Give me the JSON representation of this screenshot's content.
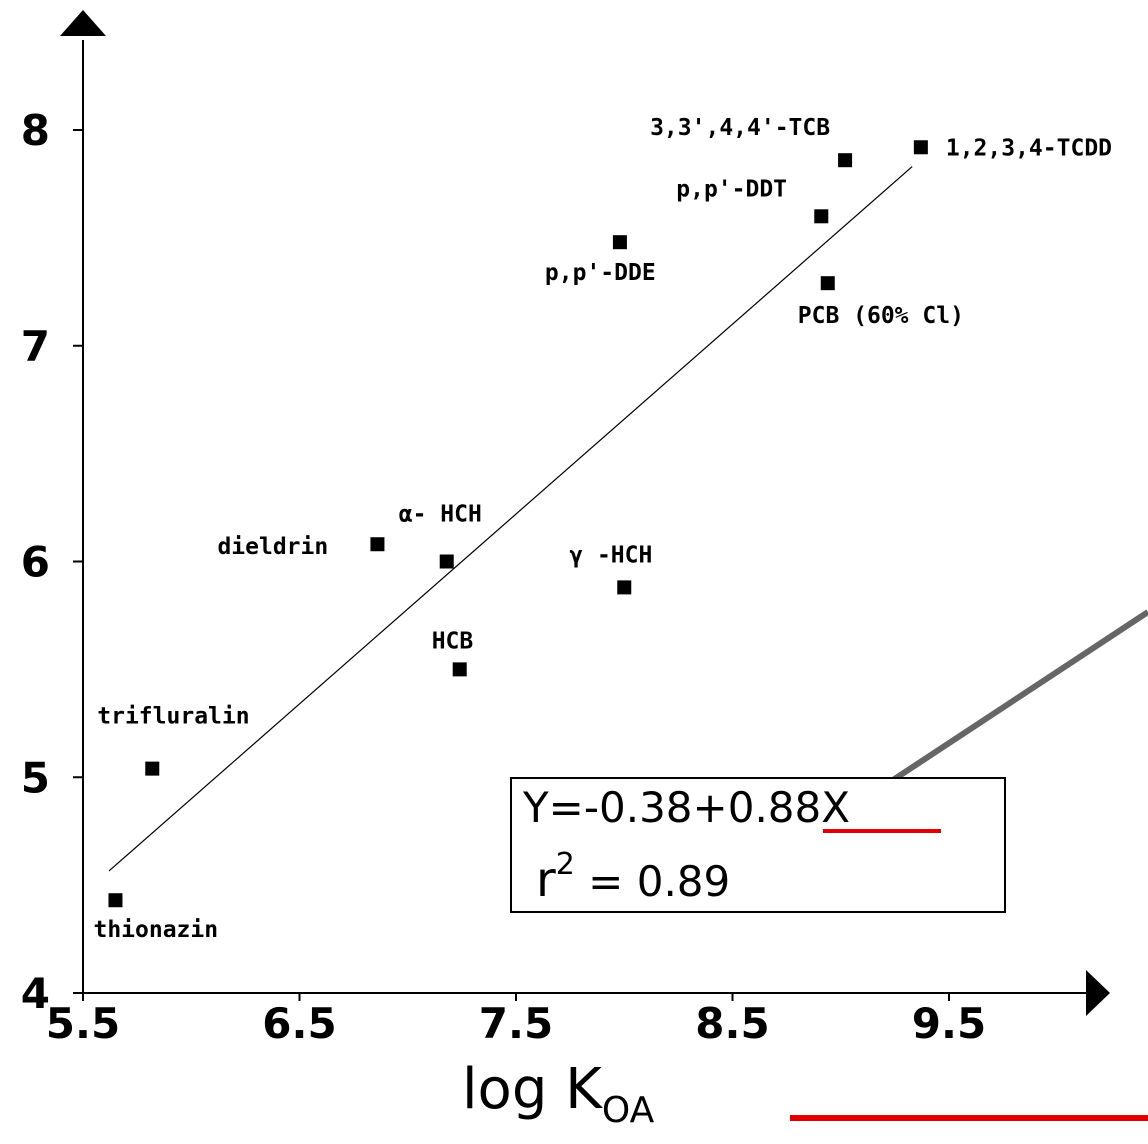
{
  "chart_data": {
    "type": "scatter",
    "title": "",
    "xlabel": "log K",
    "xlabel_sub": "OA",
    "ylabel": "",
    "xlim": [
      5.5,
      10.2
    ],
    "ylim": [
      4,
      8.5
    ],
    "x_ticks": [
      5.5,
      6.5,
      7.5,
      8.5,
      9.5
    ],
    "x_tick_labels": [
      "5.5",
      "6.5",
      "7.5",
      "8.5",
      "9.5"
    ],
    "y_ticks": [
      4,
      5,
      6,
      7,
      8
    ],
    "y_tick_labels": [
      "4",
      "5",
      "6",
      "7",
      "8"
    ],
    "grid": false,
    "points": [
      {
        "label": "thionazin",
        "x": 5.65,
        "y": 4.43
      },
      {
        "label": "trifluralin",
        "x": 5.82,
        "y": 5.04
      },
      {
        "label": "dieldrin",
        "x": 6.86,
        "y": 6.08
      },
      {
        "label": "α- HCH",
        "x": 7.18,
        "y": 6.0
      },
      {
        "label": "HCB",
        "x": 7.24,
        "y": 5.5
      },
      {
        "label": "γ -HCH",
        "x": 8.0,
        "y": 5.88
      },
      {
        "label": "p,p'-DDE",
        "x": 7.98,
        "y": 7.48
      },
      {
        "label": "PCB (60% Cl)",
        "x": 8.94,
        "y": 7.29
      },
      {
        "label": "p,p'-DDT",
        "x": 8.91,
        "y": 7.6
      },
      {
        "label": "3,3',4,4'-TCB",
        "x": 9.02,
        "y": 7.86
      },
      {
        "label": "1,2,3,4-TCDD",
        "x": 9.37,
        "y": 7.92
      }
    ],
    "fit_line": {
      "intercept": -0.38,
      "slope": 0.88,
      "x_start": 5.62,
      "x_end": 9.33
    },
    "annotation": {
      "equation_prefix": "Y=-0.38+",
      "equation_slope": "0.88",
      "equation_suffix": "X",
      "r2_symbol": "r",
      "r2_sup": "2",
      "r2_value": " = 0.89"
    },
    "colors": {
      "axis": "#000000",
      "points": "#000000",
      "callout": "#666666",
      "highlight": "#e00000"
    }
  }
}
